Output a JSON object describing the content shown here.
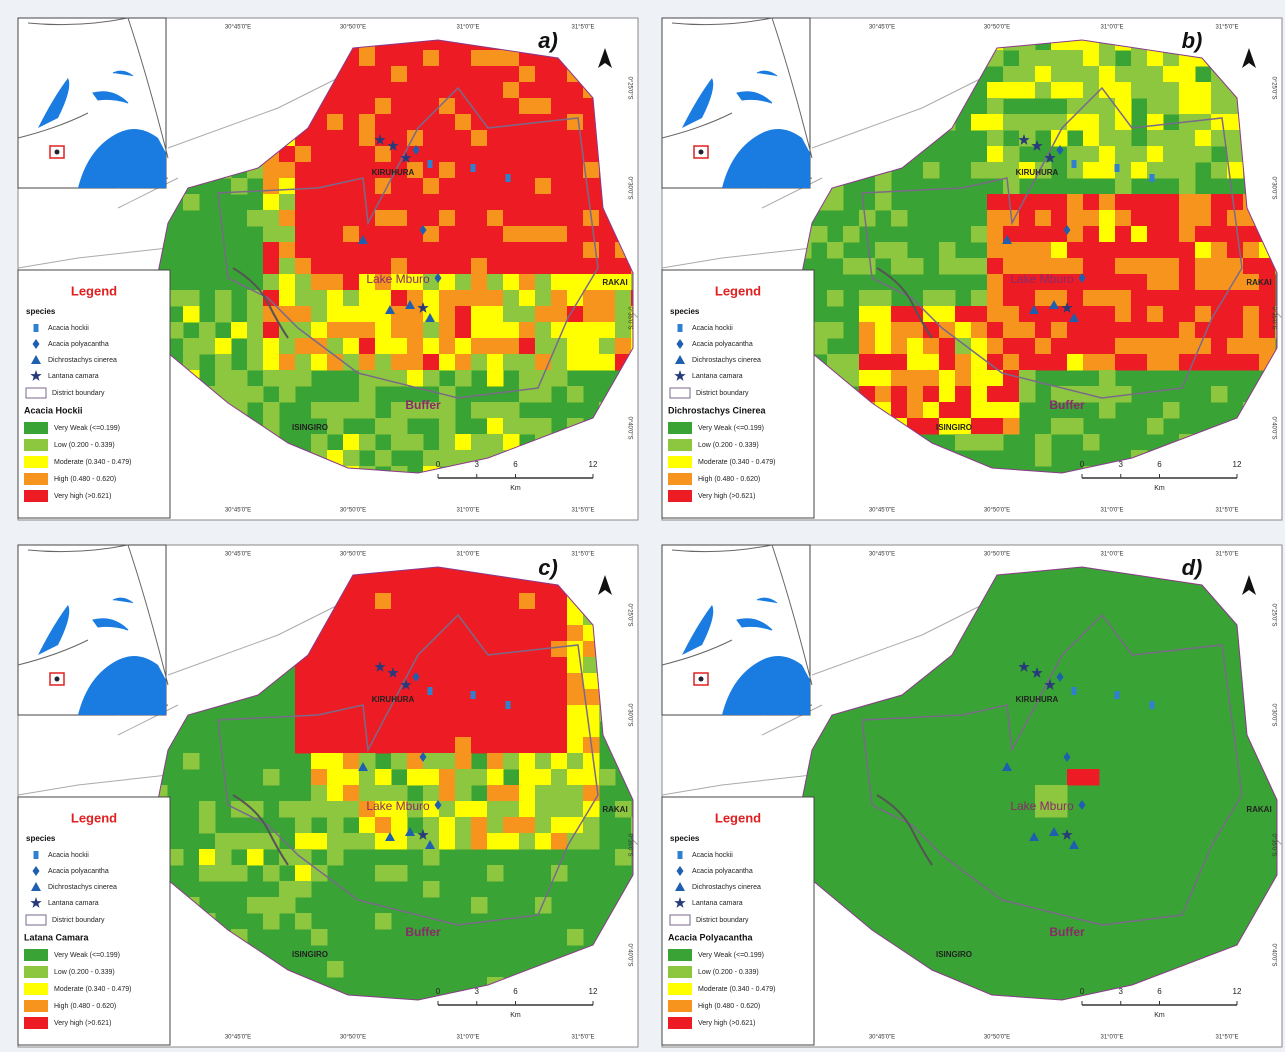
{
  "panels": [
    {
      "label": "a)",
      "legend": {
        "title": "Legend",
        "species_title": "species",
        "species": [
          "Acacia hockii",
          "Acacia polyacantha",
          "Dichrostachys cinerea",
          "Lantana camara"
        ],
        "boundary": "District boundary",
        "layer_title": "Acacia Hockii",
        "classes": [
          {
            "label": "Very Weak (<=0.199)",
            "color": "#3aa335"
          },
          {
            "label": "Low (0.200 - 0.339)",
            "color": "#8dc63f"
          },
          {
            "label": "Moderate (0.340 - 0.479)",
            "color": "#ffff00"
          },
          {
            "label": "High (0.480 - 0.620)",
            "color": "#f7941d"
          },
          {
            "label": "Very high (>0.621)",
            "color": "#ed1c24"
          }
        ]
      },
      "places": [
        "KIRUHURA",
        "Lake Mburo",
        "RAKAI",
        "Buffer",
        "ISINGIRO"
      ],
      "scale": {
        "ticks": [
          0,
          3,
          6,
          12
        ],
        "unit": "Km"
      },
      "lon_labels": [
        "30°45'0\"E",
        "30°50'0\"E",
        "31°0'0\"E",
        "31°5'0\"E"
      ],
      "lat_labels": [
        "0°25'0\"S",
        "0°30'0\"S",
        "0°35'0\"S",
        "0°40'0\"S"
      ]
    },
    {
      "label": "b)",
      "legend": {
        "title": "Legend",
        "species_title": "species",
        "species": [
          "Acacia hockii",
          "Acacia polyacantha",
          "Dichrostachys cinerea",
          "Lantana camara"
        ],
        "boundary": "District boundary",
        "layer_title": "Dichrostachys Cinerea",
        "classes": [
          {
            "label": "Very Weak (<=0.199)",
            "color": "#3aa335"
          },
          {
            "label": "Low (0.200 - 0.339)",
            "color": "#8dc63f"
          },
          {
            "label": "Moderate (0.340 - 0.479)",
            "color": "#ffff00"
          },
          {
            "label": "High (0.480 - 0.620)",
            "color": "#f7941d"
          },
          {
            "label": "Very high (>0.621)",
            "color": "#ed1c24"
          }
        ]
      },
      "places": [
        "KIRUHURA",
        "Lake Mburo",
        "RAKAI",
        "Buffer",
        "ISINGIRO"
      ],
      "scale": {
        "ticks": [
          0,
          3,
          6,
          12
        ],
        "unit": "Km"
      },
      "lon_labels": [
        "30°45'0\"E",
        "30°50'0\"E",
        "31°0'0\"E",
        "31°5'0\"E"
      ],
      "lat_labels": [
        "0°25'0\"S",
        "0°30'0\"S",
        "0°35'0\"S",
        "0°40'0\"S"
      ]
    },
    {
      "label": "c)",
      "legend": {
        "title": "Legend",
        "species_title": "species",
        "species": [
          "Acacia hockii",
          "Acacia polyacantha",
          "Dichrostachys cinerea",
          "Lantana camara"
        ],
        "boundary": "District boundary",
        "layer_title": "Latana Camara",
        "classes": [
          {
            "label": "Very Weak (<=0.199)",
            "color": "#3aa335"
          },
          {
            "label": "Low (0.200 - 0.339)",
            "color": "#8dc63f"
          },
          {
            "label": "Moderate (0.340 - 0.479)",
            "color": "#ffff00"
          },
          {
            "label": "High (0.480 - 0.620)",
            "color": "#f7941d"
          },
          {
            "label": "Very high (>0.621)",
            "color": "#ed1c24"
          }
        ]
      },
      "places": [
        "KIRUHURA",
        "Lake Mburo",
        "RAKAI",
        "Buffer",
        "ISINGIRO"
      ],
      "scale": {
        "ticks": [
          0,
          3,
          6,
          12
        ],
        "unit": "Km"
      },
      "lon_labels": [
        "30°45'0\"E",
        "30°50'0\"E",
        "31°0'0\"E",
        "31°5'0\"E"
      ],
      "lat_labels": [
        "0°25'0\"S",
        "0°30'0\"S",
        "0°35'0\"S",
        "0°40'0\"S"
      ]
    },
    {
      "label": "d)",
      "legend": {
        "title": "Legend",
        "species_title": "species",
        "species": [
          "Acacia hockii",
          "Acacia polyacantha",
          "Dichrostachys cinerea",
          "Lantana camara"
        ],
        "boundary": "District boundary",
        "layer_title": "Acacia Polyacantha",
        "classes": [
          {
            "label": "Very Weak (<=0.199)",
            "color": "#3aa335"
          },
          {
            "label": "Low (0.200 - 0.339)",
            "color": "#8dc63f"
          },
          {
            "label": "Moderate (0.340 - 0.479)",
            "color": "#ffff00"
          },
          {
            "label": "High (0.480 - 0.620)",
            "color": "#f7941d"
          },
          {
            "label": "Very high (>0.621)",
            "color": "#ed1c24"
          }
        ]
      },
      "places": [
        "KIRUHURA",
        "Lake Mburo",
        "RAKAI",
        "Buffer",
        "ISINGIRO"
      ],
      "scale": {
        "ticks": [
          0,
          3,
          6,
          12
        ],
        "unit": "Km"
      },
      "lon_labels": [
        "30°45'0\"E",
        "30°50'0\"E",
        "31°0'0\"E",
        "31°5'0\"E"
      ],
      "lat_labels": [
        "0°25'0\"S",
        "0°30'0\"S",
        "0°35'0\"S",
        "0°40'0\"S"
      ]
    }
  ]
}
